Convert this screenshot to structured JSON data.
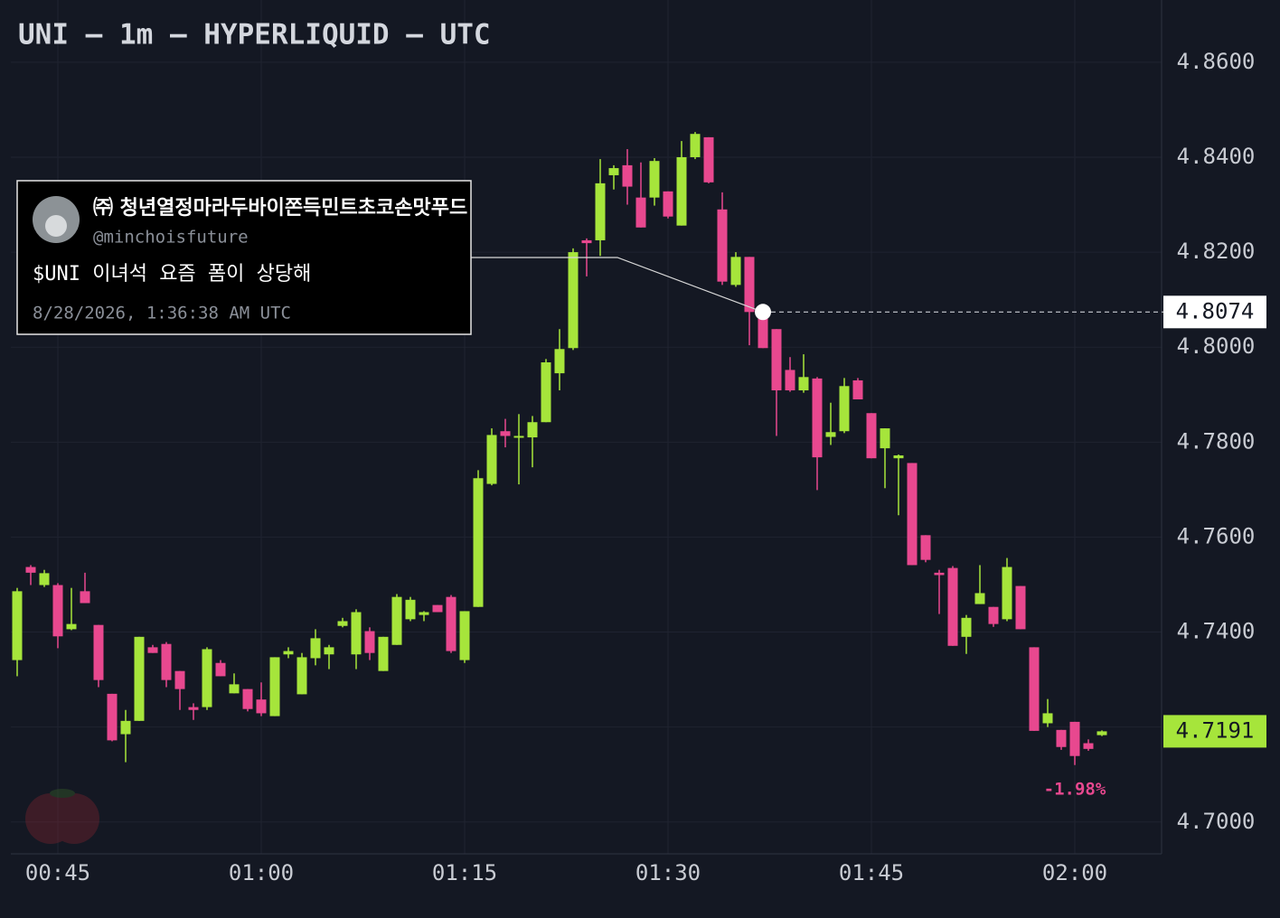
{
  "chart_data": {
    "type": "candlestick",
    "title": "UNI — 1m — HYPERLIQUID — UTC",
    "x": [
      "00:42",
      "00:43",
      "00:44",
      "00:45",
      "00:46",
      "00:47",
      "00:48",
      "00:49",
      "00:50",
      "00:51",
      "00:52",
      "00:53",
      "00:54",
      "00:55",
      "00:56",
      "00:57",
      "00:58",
      "00:59",
      "01:00",
      "01:01",
      "01:02",
      "01:03",
      "01:04",
      "01:05",
      "01:06",
      "01:07",
      "01:08",
      "01:09",
      "01:10",
      "01:11",
      "01:12",
      "01:13",
      "01:14",
      "01:15",
      "01:16",
      "01:17",
      "01:18",
      "01:19",
      "01:20",
      "01:21",
      "01:22",
      "01:23",
      "01:24",
      "01:25",
      "01:26",
      "01:27",
      "01:28",
      "01:29",
      "01:30",
      "01:31",
      "01:32",
      "01:33",
      "01:34",
      "01:35",
      "01:36",
      "01:37",
      "01:38",
      "01:39",
      "01:40",
      "01:41",
      "01:42",
      "01:43",
      "01:44",
      "01:45",
      "01:46",
      "01:47",
      "01:48",
      "01:49",
      "01:50",
      "01:51",
      "01:52",
      "01:53",
      "01:54",
      "01:55",
      "01:56",
      "01:57",
      "01:58",
      "01:59",
      "02:00",
      "02:01",
      "02:02"
    ],
    "open": [
      4.7341,
      4.7537,
      4.7499,
      4.7499,
      4.7406,
      4.7486,
      4.7415,
      4.727,
      4.7185,
      4.7213,
      4.7368,
      4.7375,
      4.7318,
      4.7242,
      4.7242,
      4.7335,
      4.7271,
      4.728,
      4.7258,
      4.7223,
      4.7353,
      4.7269,
      4.7345,
      4.7353,
      4.7413,
      4.7353,
      4.7402,
      4.7318,
      4.7373,
      4.7427,
      4.7436,
      4.7457,
      4.7474,
      4.7341,
      4.7453,
      4.7712,
      4.7823,
      4.781,
      4.781,
      4.7842,
      4.7945,
      4.7998,
      4.8225,
      4.8225,
      4.8362,
      4.8383,
      4.8315,
      4.8315,
      4.8328,
      4.8256,
      4.84,
      4.8442,
      4.829,
      4.8131,
      4.819,
      4.8066,
      4.8038,
      4.7952,
      4.7909,
      4.7934,
      4.7811,
      4.7823,
      4.793,
      4.7861,
      4.7787,
      4.7766,
      4.7756,
      4.7604,
      4.7525,
      4.7535,
      4.739,
      4.7459,
      4.7453,
      4.7427,
      4.7497,
      4.7368,
      4.7208,
      4.7194,
      4.7211,
      4.7166,
      4.7183
    ],
    "high": [
      4.7493,
      4.7541,
      4.7531,
      4.7503,
      4.7493,
      4.7525,
      4.7415,
      4.727,
      4.7236,
      4.739,
      4.7373,
      4.7379,
      4.7318,
      4.725,
      4.7368,
      4.7341,
      4.7313,
      4.728,
      4.7294,
      4.7347,
      4.7368,
      4.7356,
      4.7406,
      4.7373,
      4.743,
      4.7448,
      4.741,
      4.739,
      4.748,
      4.7474,
      4.7444,
      4.7457,
      4.7478,
      4.7444,
      4.7741,
      4.7829,
      4.7849,
      4.7859,
      4.7855,
      4.7975,
      4.8038,
      4.8208,
      4.8229,
      4.8396,
      4.8383,
      4.8417,
      4.8389,
      4.8398,
      4.8328,
      4.8434,
      4.8453,
      4.8442,
      4.8326,
      4.82,
      4.819,
      4.8087,
      4.8038,
      4.7979,
      4.7985,
      4.7937,
      4.7883,
      4.7935,
      4.7935,
      4.7861,
      4.7829,
      4.7774,
      4.7756,
      4.7604,
      4.7531,
      4.7539,
      4.7436,
      4.7541,
      4.7453,
      4.7556,
      4.7497,
      4.7368,
      4.7259,
      4.7194,
      4.7211,
      4.7174,
      4.7193
    ],
    "low": [
      4.7307,
      4.7499,
      4.7495,
      4.7366,
      4.7404,
      4.7461,
      4.7284,
      4.717,
      4.7126,
      4.7213,
      4.7356,
      4.7284,
      4.7236,
      4.7215,
      4.7236,
      4.7307,
      4.7271,
      4.7233,
      4.7223,
      4.7223,
      4.7345,
      4.7269,
      4.733,
      4.7322,
      4.741,
      4.7322,
      4.7341,
      4.7318,
      4.7373,
      4.7423,
      4.7423,
      4.7442,
      4.7356,
      4.7335,
      4.7453,
      4.7709,
      4.7789,
      4.7711,
      4.7747,
      4.7842,
      4.7909,
      4.7994,
      4.8149,
      4.8192,
      4.8332,
      4.83,
      4.8252,
      4.8298,
      4.8271,
      4.8256,
      4.8396,
      4.8345,
      4.8131,
      4.8127,
      4.8004,
      4.7998,
      4.7813,
      4.7906,
      4.7904,
      4.7699,
      4.7794,
      4.7819,
      4.789,
      4.7766,
      4.7703,
      4.7646,
      4.7541,
      4.7547,
      4.7438,
      4.7371,
      4.7354,
      4.7459,
      4.7411,
      4.7423,
      4.7406,
      4.7192,
      4.72,
      4.7152,
      4.712,
      4.715,
      4.7181
    ],
    "close": [
      4.7486,
      4.7525,
      4.7524,
      4.7391,
      4.7417,
      4.7461,
      4.7299,
      4.7172,
      4.7213,
      4.739,
      4.7356,
      4.7299,
      4.728,
      4.7236,
      4.7364,
      4.7307,
      4.729,
      4.7238,
      4.7229,
      4.7347,
      4.736,
      4.7347,
      4.7387,
      4.7368,
      4.7423,
      4.7442,
      4.7356,
      4.739,
      4.7474,
      4.7468,
      4.7442,
      4.7442,
      4.736,
      4.7444,
      4.7724,
      4.7815,
      4.7813,
      4.7813,
      4.7842,
      4.7968,
      4.7996,
      4.82,
      4.8219,
      4.8345,
      4.8377,
      4.8338,
      4.8252,
      4.8392,
      4.8275,
      4.84,
      4.8449,
      4.8347,
      4.8138,
      4.819,
      4.8074,
      4.7998,
      4.7909,
      4.7909,
      4.7937,
      4.7768,
      4.7821,
      4.7918,
      4.789,
      4.7766,
      4.7829,
      4.7772,
      4.7541,
      4.7552,
      4.752,
      4.7371,
      4.743,
      4.7482,
      4.7417,
      4.7537,
      4.7406,
      4.7192,
      4.7229,
      4.7158,
      4.7139,
      4.7154,
      4.7191
    ],
    "up_color": "#a6e53b",
    "down_color": "#e8488f",
    "ylim": [
      4.6933,
      4.8731
    ],
    "yticks": [
      {
        "value": 4.7,
        "label": "4.7000"
      },
      {
        "value": 4.72,
        "label": "4.7200"
      },
      {
        "value": 4.74,
        "label": "4.7400"
      },
      {
        "value": 4.76,
        "label": "4.7600"
      },
      {
        "value": 4.78,
        "label": "4.7800"
      },
      {
        "value": 4.8,
        "label": "4.8000"
      },
      {
        "value": 4.82,
        "label": "4.8200"
      },
      {
        "value": 4.84,
        "label": "4.8400"
      },
      {
        "value": 4.86,
        "label": "4.8600"
      }
    ],
    "xticks": [
      "00:45",
      "01:00",
      "01:15",
      "01:30",
      "01:45",
      "02:00"
    ],
    "grid": true,
    "last_price": 4.7191,
    "change": {
      "value": -1.98,
      "label": "-1.98%"
    },
    "annotation": {
      "price": 4.8074,
      "name": "㈜ 청년열정마라두바이쫀득민트초코손맛푸드",
      "handle": "@minchoisfuture",
      "text": "$UNI 이녀석 요즘 폼이 상당해",
      "date": "8/28/2026, 1:36:38 AM UTC"
    }
  }
}
